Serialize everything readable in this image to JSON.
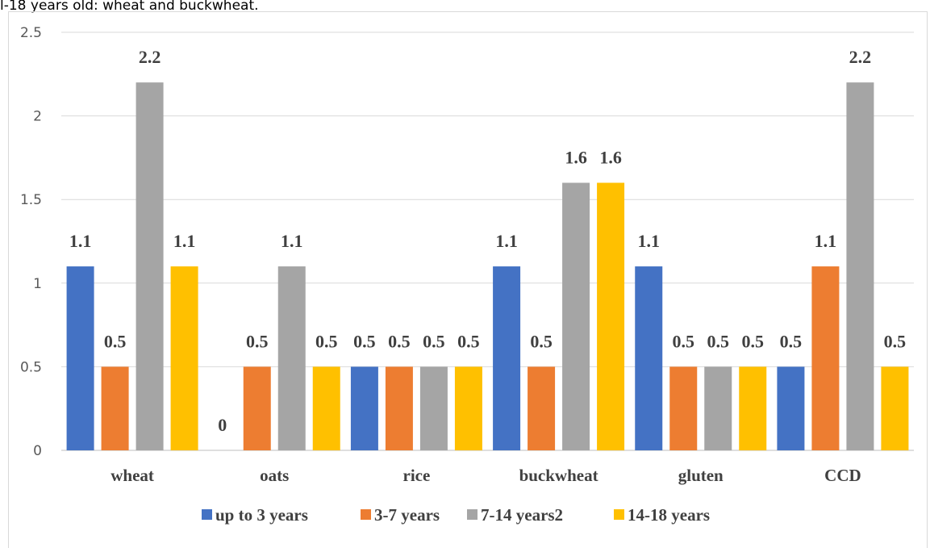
{
  "caption": "l-18 years old: wheat and buckwheat.",
  "chart_data": {
    "type": "bar",
    "categories": [
      "wheat",
      "oats",
      "rice",
      "buckwheat",
      "gluten",
      "CCD"
    ],
    "series": [
      {
        "name": "up to 3 years",
        "values": [
          1.1,
          0,
          0.5,
          1.1,
          1.1,
          0.5
        ],
        "color": "#4472C4"
      },
      {
        "name": "3-7 years",
        "values": [
          0.5,
          0.5,
          0.5,
          0.5,
          0.5,
          1.1
        ],
        "color": "#ED7D31"
      },
      {
        "name": "7-14 years2",
        "values": [
          2.2,
          1.1,
          0.5,
          1.6,
          0.5,
          2.2
        ],
        "color": "#A5A5A5"
      },
      {
        "name": "14-18 years",
        "values": [
          1.1,
          0.5,
          0.5,
          1.6,
          0.5,
          0.5
        ],
        "color": "#FFC000"
      }
    ],
    "yticks": [
      "0",
      "0.5",
      "1",
      "1.5",
      "2",
      "2.5"
    ],
    "ylim": [
      0,
      2.5
    ],
    "grid": true,
    "legend": "bottom",
    "title": "",
    "xlabel": "",
    "ylabel": ""
  }
}
